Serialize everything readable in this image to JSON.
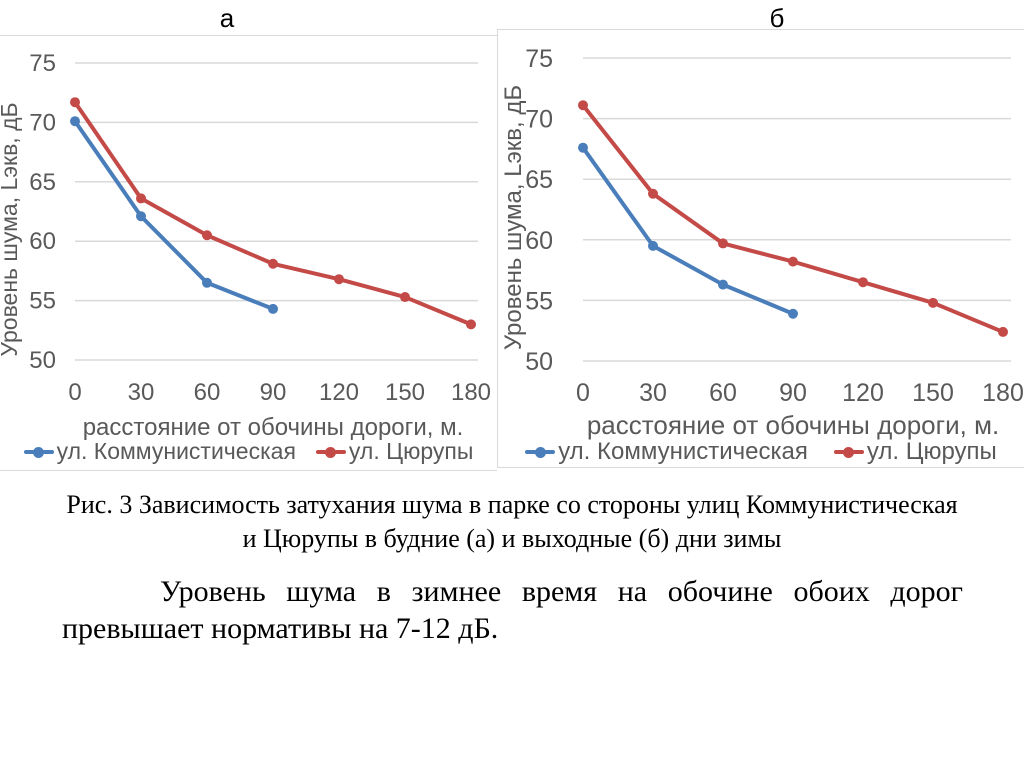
{
  "figure": {
    "caption_line1": "Рис. 3 Зависимость затухания шума в парке со стороны улиц Коммунистическая",
    "caption_line2": "и Цюрупы в будние (а) и выходные (б) дни зимы",
    "paragraph_line1": "Уровень шума в зимнее время на обочине обоих дорог",
    "paragraph_line2": "превышает нормативы на 7-12 дБ."
  },
  "colors": {
    "series_blue": "#4A7EBB",
    "series_red": "#C44A48",
    "gridline": "#D9D9D9",
    "panel_border": "#D9D9D9",
    "axis_text": "#595959",
    "label_text": "#000000"
  },
  "chart_data": [
    {
      "type": "line",
      "panel_label": "а",
      "x": [
        0,
        30,
        60,
        90,
        120,
        150,
        180
      ],
      "series": [
        {
          "name": "ул. Коммунистическая",
          "color": "#4A7EBB",
          "values": [
            70.1,
            62.1,
            56.5,
            54.3
          ]
        },
        {
          "name": "ул. Цюрупы",
          "color": "#C44A48",
          "values": [
            71.7,
            63.6,
            60.5,
            58.1,
            56.8,
            55.3,
            53.0
          ]
        }
      ],
      "xlabel": "расстояние от обочины дороги, м.",
      "ylabel": "Уровень шума, Lэкв, дБ",
      "ylim": [
        50,
        75
      ],
      "yticks": [
        50,
        55,
        60,
        65,
        70,
        75
      ],
      "grid": "horizontal",
      "legend_position": "bottom"
    },
    {
      "type": "line",
      "panel_label": "б",
      "x": [
        0,
        30,
        60,
        90,
        120,
        150,
        180
      ],
      "series": [
        {
          "name": "ул. Коммунистическая",
          "color": "#4A7EBB",
          "values": [
            67.6,
            59.5,
            56.3,
            53.9
          ]
        },
        {
          "name": "ул. Цюрупы",
          "color": "#C44A48",
          "values": [
            71.1,
            63.8,
            59.7,
            58.2,
            56.5,
            54.8,
            52.4
          ]
        }
      ],
      "xlabel": "расстояние от обочины дороги, м.",
      "ylabel": "Уровень шума, Lэкв, дБ",
      "ylim": [
        50,
        75
      ],
      "yticks": [
        50,
        55,
        60,
        65,
        70,
        75
      ],
      "grid": "horizontal",
      "legend_position": "bottom"
    }
  ]
}
